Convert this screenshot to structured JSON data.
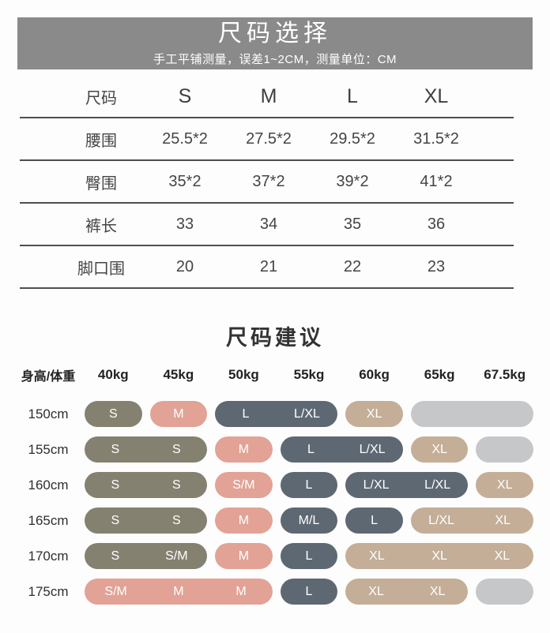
{
  "size_select": {
    "banner_color": "#8A8A8A",
    "title": "尺码选择",
    "subtitle": "手工平铺测量，误差1~2CM，测量单位：CM",
    "columns": [
      "尺码",
      "S",
      "M",
      "L",
      "XL"
    ],
    "rows": [
      {
        "label": "腰围",
        "values": [
          "25.5*2",
          "27.5*2",
          "29.5*2",
          "31.5*2"
        ]
      },
      {
        "label": "臀围",
        "values": [
          "35*2",
          "37*2",
          "39*2",
          "41*2"
        ]
      },
      {
        "label": "裤长",
        "values": [
          "33",
          "34",
          "35",
          "36"
        ]
      },
      {
        "label": "脚口围",
        "values": [
          "20",
          "21",
          "22",
          "23"
        ]
      }
    ]
  },
  "size_advice": {
    "title": "尺码建议",
    "corner_label": "身高/体重",
    "weights": [
      "40kg",
      "45kg",
      "50kg",
      "55kg",
      "60kg",
      "65kg",
      "67.5kg"
    ],
    "pill_colors": {
      "olive": "#858170",
      "pink": "#E2A296",
      "slate": "#5E6873",
      "tan": "#C4AE97",
      "gray": "#C6C7C9"
    },
    "rows": [
      {
        "height": "150cm",
        "pills": [
          {
            "col": 1,
            "span": 1,
            "color": "olive",
            "labels": [
              "S"
            ]
          },
          {
            "col": 2,
            "span": 1,
            "color": "pink",
            "labels": [
              "M"
            ]
          },
          {
            "col": 3,
            "span": 2,
            "color": "slate",
            "labels": [
              "L",
              "L/XL"
            ]
          },
          {
            "col": 5,
            "span": 1,
            "color": "tan",
            "labels": [
              "XL"
            ]
          },
          {
            "col": 6,
            "span": 2,
            "color": "gray",
            "labels": []
          }
        ]
      },
      {
        "height": "155cm",
        "pills": [
          {
            "col": 1,
            "span": 2,
            "color": "olive",
            "labels": [
              "S",
              "S"
            ]
          },
          {
            "col": 3,
            "span": 1,
            "color": "pink",
            "labels": [
              "M"
            ]
          },
          {
            "col": 4,
            "span": 2,
            "color": "slate",
            "labels": [
              "L",
              "L/XL"
            ]
          },
          {
            "col": 6,
            "span": 1,
            "color": "tan",
            "labels": [
              "XL"
            ]
          },
          {
            "col": 7,
            "span": 1,
            "color": "gray",
            "labels": []
          }
        ]
      },
      {
        "height": "160cm",
        "pills": [
          {
            "col": 1,
            "span": 2,
            "color": "olive",
            "labels": [
              "S",
              "S"
            ]
          },
          {
            "col": 3,
            "span": 1,
            "color": "pink",
            "labels": [
              "S/M"
            ]
          },
          {
            "col": 4,
            "span": 1,
            "color": "slate",
            "labels": [
              "L"
            ]
          },
          {
            "col": 5,
            "span": 2,
            "color": "slate",
            "labels": [
              "L/XL",
              "L/XL"
            ]
          },
          {
            "col": 7,
            "span": 1,
            "color": "tan",
            "labels": [
              "XL"
            ]
          }
        ]
      },
      {
        "height": "165cm",
        "pills": [
          {
            "col": 1,
            "span": 2,
            "color": "olive",
            "labels": [
              "S",
              "S"
            ]
          },
          {
            "col": 3,
            "span": 1,
            "color": "pink",
            "labels": [
              "M"
            ]
          },
          {
            "col": 4,
            "span": 1,
            "color": "slate",
            "labels": [
              "M/L"
            ]
          },
          {
            "col": 5,
            "span": 1,
            "color": "slate",
            "labels": [
              "L"
            ]
          },
          {
            "col": 6,
            "span": 2,
            "color": "tan",
            "labels": [
              "L/XL",
              "XL"
            ]
          }
        ]
      },
      {
        "height": "170cm",
        "pills": [
          {
            "col": 1,
            "span": 2,
            "color": "olive",
            "labels": [
              "S",
              "S/M"
            ]
          },
          {
            "col": 3,
            "span": 1,
            "color": "pink",
            "labels": [
              "M"
            ]
          },
          {
            "col": 4,
            "span": 1,
            "color": "slate",
            "labels": [
              "L"
            ]
          },
          {
            "col": 5,
            "span": 3,
            "color": "tan",
            "labels": [
              "XL",
              "XL",
              "XL"
            ]
          }
        ]
      },
      {
        "height": "175cm",
        "pills": [
          {
            "col": 1,
            "span": 3,
            "color": "pink",
            "labels": [
              "S/M",
              "M",
              "M"
            ]
          },
          {
            "col": 4,
            "span": 1,
            "color": "slate",
            "labels": [
              "L"
            ]
          },
          {
            "col": 5,
            "span": 2,
            "color": "tan",
            "labels": [
              "XL",
              "XL"
            ]
          },
          {
            "col": 7,
            "span": 1,
            "color": "gray",
            "labels": []
          }
        ]
      }
    ]
  },
  "chart_data": [
    {
      "type": "table",
      "title": "尺码选择",
      "subtitle": "手工平铺测量，误差1~2CM，测量单位：CM",
      "columns": [
        "尺码",
        "S",
        "M",
        "L",
        "XL"
      ],
      "rows": [
        [
          "腰围",
          "25.5*2",
          "27.5*2",
          "29.5*2",
          "31.5*2"
        ],
        [
          "臀围",
          "35*2",
          "37*2",
          "39*2",
          "41*2"
        ],
        [
          "裤长",
          "33",
          "34",
          "35",
          "36"
        ],
        [
          "脚口围",
          "20",
          "21",
          "22",
          "23"
        ]
      ]
    },
    {
      "type": "table",
      "title": "尺码建议",
      "columns": [
        "身高/体重",
        "40kg",
        "45kg",
        "50kg",
        "55kg",
        "60kg",
        "65kg",
        "67.5kg"
      ],
      "rows": [
        [
          "150cm",
          "S",
          "M",
          "L",
          "L/XL",
          "XL",
          "",
          ""
        ],
        [
          "155cm",
          "S",
          "S",
          "M",
          "L",
          "L/XL",
          "XL",
          ""
        ],
        [
          "160cm",
          "S",
          "S",
          "S/M",
          "L",
          "L/XL",
          "L/XL",
          "XL"
        ],
        [
          "165cm",
          "S",
          "S",
          "M",
          "M/L",
          "L",
          "L/XL",
          "XL"
        ],
        [
          "170cm",
          "S",
          "S/M",
          "M",
          "L",
          "XL",
          "XL",
          "XL"
        ],
        [
          "175cm",
          "S/M",
          "M",
          "M",
          "L",
          "XL",
          "XL",
          ""
        ]
      ]
    }
  ]
}
